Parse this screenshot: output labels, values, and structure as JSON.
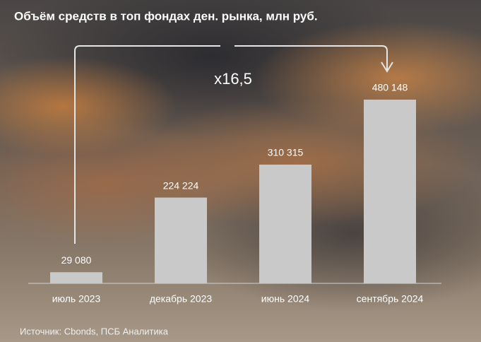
{
  "chart_data": {
    "type": "bar",
    "title": "Объём средств в топ фондах ден. рынка, млн руб.",
    "categories": [
      "июль 2023",
      "декабрь 2023",
      "июнь 2024",
      "сентябрь 2024"
    ],
    "values": [
      29080,
      224224,
      310315,
      480148
    ],
    "value_labels": [
      "29 080",
      "224 224",
      "310 315",
      "480 148"
    ],
    "color": "#c9c9c9",
    "annotation": "x16,5",
    "source": "Источник: Cbonds, ПСБ Аналитика"
  }
}
